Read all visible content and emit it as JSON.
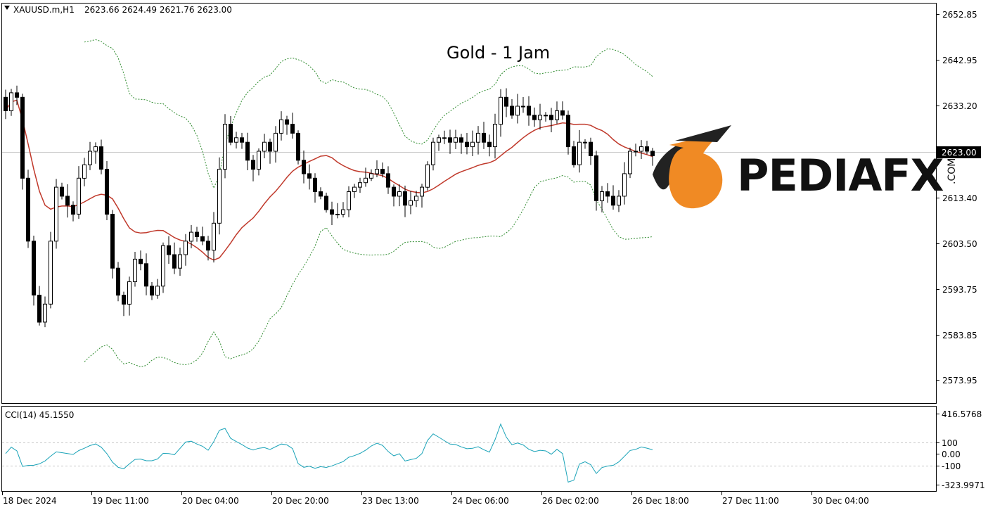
{
  "header": {
    "symbol": "XAUUSD.m,H1",
    "ohlc": "2623.66 2624.49 2621.76 2623.00"
  },
  "title": "Gold - 1 Jam",
  "logo": {
    "text": "PEDIAFX",
    "suffix": ".COM",
    "accent": "#f08a24"
  },
  "price_axis": {
    "ticks": [
      "2652.85",
      "2642.95",
      "2633.20",
      "2623.00",
      "2613.40",
      "2603.50",
      "2593.75",
      "2583.85",
      "2573.95"
    ],
    "current_price": "2623.00"
  },
  "time_axis": {
    "labels": [
      "18 Dec 2024",
      "19 Dec 11:00",
      "20 Dec 04:00",
      "20 Dec 20:00",
      "23 Dec 13:00",
      "24 Dec 06:00",
      "26 Dec 02:00",
      "26 Dec 18:00",
      "27 Dec 11:00",
      "30 Dec 04:00"
    ]
  },
  "indicator": {
    "label": "CCI(14) 45.1550",
    "ticks": [
      "416.5768",
      "100",
      "0.00",
      "-100",
      "-323.9971"
    ]
  },
  "colors": {
    "candle": "#000000",
    "ma": "#c0392b",
    "bands": "#2e8b2e",
    "cci": "#1aa3b8",
    "grid": "#c8c8c8"
  },
  "chart_data": {
    "type": "candlestick",
    "symbol": "XAUUSD.m",
    "timeframe": "H1",
    "ylim": [
      2568,
      2657
    ],
    "close": [
      2633,
      2637,
      2636,
      2618,
      2604,
      2592,
      2586,
      2590,
      2604,
      2616,
      2614,
      2612,
      2610,
      2618,
      2621,
      2624,
      2625,
      2620,
      2610,
      2598,
      2592,
      2590,
      2595,
      2600,
      2599,
      2594,
      2592,
      2594,
      2603,
      2601,
      2598,
      2601,
      2604,
      2606,
      2605,
      2604,
      2602,
      2608,
      2620,
      2630,
      2626,
      2627,
      2626,
      2622,
      2620,
      2624,
      2626,
      2624,
      2628,
      2631,
      2630,
      2628,
      2622,
      2619,
      2618,
      2615,
      2614,
      2611,
      2610,
      2610,
      2611,
      2615,
      2616,
      2617,
      2618,
      2619,
      2620,
      2619,
      2616,
      2614,
      2615,
      2612,
      2613,
      2614,
      2616,
      2621,
      2626,
      2627,
      2627,
      2626,
      2627,
      2626,
      2625,
      2626,
      2628,
      2626,
      2625,
      2630,
      2636,
      2634,
      2632,
      2634,
      2634,
      2632,
      2631,
      2632,
      2632,
      2631,
      2633,
      2632,
      2625,
      2621,
      2626,
      2626,
      2623,
      2613,
      2615,
      2614,
      2612,
      2614,
      2619,
      2624,
      2624,
      2625,
      2624,
      2623
    ]
  }
}
